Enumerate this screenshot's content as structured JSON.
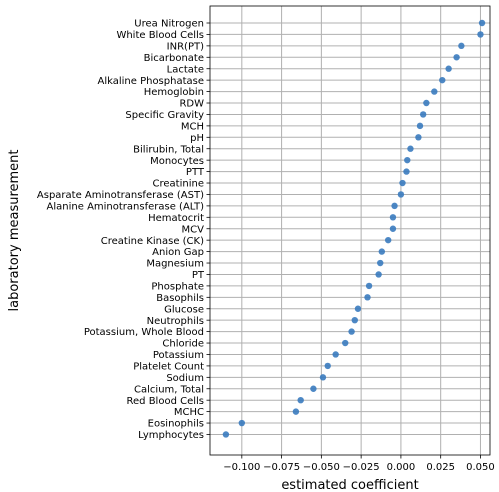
{
  "chart_data": {
    "type": "scatter",
    "title": "",
    "xlabel": "estimated coefficient",
    "ylabel": "laboratory measurement",
    "xlim": [
      -0.12,
      0.056
    ],
    "xticks": [
      -0.1,
      -0.075,
      -0.05,
      -0.025,
      0.0,
      0.025,
      0.05
    ],
    "xtick_labels": [
      "−0.100",
      "−0.075",
      "−0.050",
      "−0.025",
      "0.000",
      "0.025",
      "0.050"
    ],
    "grid": true,
    "marker_color": "#3a7bbf",
    "categories": [
      "Urea Nitrogen",
      "White Blood Cells",
      "INR(PT)",
      "Bicarbonate",
      "Lactate",
      "Alkaline Phosphatase",
      "Hemoglobin",
      "RDW",
      "Specific Gravity",
      "MCH",
      "pH",
      "Bilirubin, Total",
      "Monocytes",
      "PTT",
      "Creatinine",
      "Asparate Aminotransferase (AST)",
      "Alanine Aminotransferase (ALT)",
      "Hematocrit",
      "MCV",
      "Creatine Kinase (CK)",
      "Anion Gap",
      "Magnesium",
      "PT",
      "Phosphate",
      "Basophils",
      "Glucose",
      "Neutrophils",
      "Potassium, Whole Blood",
      "Chloride",
      "Potassium",
      "Platelet Count",
      "Sodium",
      "Calcium, Total",
      "Red Blood Cells",
      "MCHC",
      "Eosinophils",
      "Lymphocytes"
    ],
    "values": [
      0.051,
      0.05,
      0.038,
      0.035,
      0.03,
      0.026,
      0.021,
      0.016,
      0.014,
      0.012,
      0.011,
      0.006,
      0.004,
      0.0035,
      0.001,
      0.0,
      -0.004,
      -0.005,
      -0.005,
      -0.008,
      -0.012,
      -0.013,
      -0.014,
      -0.02,
      -0.021,
      -0.027,
      -0.029,
      -0.031,
      -0.035,
      -0.041,
      -0.046,
      -0.049,
      -0.055,
      -0.063,
      -0.066,
      -0.1,
      -0.11
    ]
  }
}
